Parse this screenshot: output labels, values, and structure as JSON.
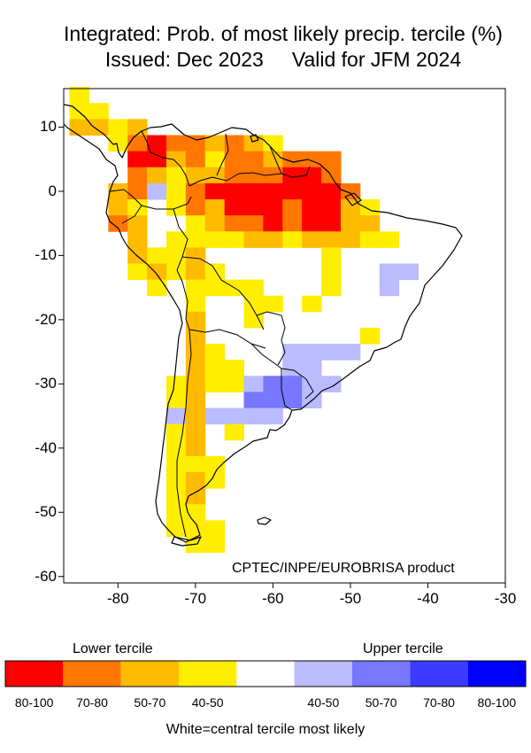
{
  "title": {
    "line1": "Integrated: Prob. of most likely precip. tercile (%)",
    "issued": "Issued: Dec 2023",
    "valid": "Valid for JFM 2024"
  },
  "map": {
    "lon_ticks": [
      "-80",
      "-70",
      "-60",
      "-50",
      "-40",
      "-30"
    ],
    "lat_ticks": [
      "10",
      "0",
      "-10",
      "-20",
      "-30",
      "-40",
      "-50",
      "-60"
    ],
    "lon_range": [
      -87,
      -30
    ],
    "lat_range": [
      -61,
      16
    ],
    "credit": "CPTEC/INPE/EUROBRISA product",
    "cells": [
      {
        "lon": -85,
        "lat": 15,
        "cls": "l4"
      },
      {
        "lon": -85,
        "lat": 12.5,
        "cls": "l4"
      },
      {
        "lon": -82.5,
        "lat": 12.5,
        "cls": "l4"
      },
      {
        "lon": -85,
        "lat": 10,
        "cls": "l3"
      },
      {
        "lon": -82.5,
        "lat": 10,
        "cls": "l3"
      },
      {
        "lon": -80,
        "lat": 10,
        "cls": "l4"
      },
      {
        "lon": -77.5,
        "lat": 10,
        "cls": "l3"
      },
      {
        "lon": -80,
        "lat": 7.5,
        "cls": "l4"
      },
      {
        "lon": -77.5,
        "lat": 7.5,
        "cls": "l2"
      },
      {
        "lon": -75,
        "lat": 7.5,
        "cls": "l1"
      },
      {
        "lon": -72.5,
        "lat": 7.5,
        "cls": "l2"
      },
      {
        "lon": -70,
        "lat": 7.5,
        "cls": "l2"
      },
      {
        "lon": -67.5,
        "lat": 7.5,
        "cls": "l3"
      },
      {
        "lon": -65,
        "lat": 7.5,
        "cls": "l2"
      },
      {
        "lon": -62.5,
        "lat": 7.5,
        "cls": "l3"
      },
      {
        "lon": -60,
        "lat": 7.5,
        "cls": "l4"
      },
      {
        "lon": -77.5,
        "lat": 5,
        "cls": "l1"
      },
      {
        "lon": -75,
        "lat": 5,
        "cls": "l1"
      },
      {
        "lon": -72.5,
        "lat": 5,
        "cls": "l3"
      },
      {
        "lon": -70,
        "lat": 5,
        "cls": "l2"
      },
      {
        "lon": -67.5,
        "lat": 5,
        "cls": "l4"
      },
      {
        "lon": -65,
        "lat": 5,
        "cls": "l2"
      },
      {
        "lon": -62.5,
        "lat": 5,
        "cls": "l2"
      },
      {
        "lon": -60,
        "lat": 5,
        "cls": "l3"
      },
      {
        "lon": -57.5,
        "lat": 5,
        "cls": "l2"
      },
      {
        "lon": -55,
        "lat": 5,
        "cls": "l2"
      },
      {
        "lon": -52.5,
        "lat": 5,
        "cls": "l2"
      },
      {
        "lon": -77.5,
        "lat": 2.5,
        "cls": "l2"
      },
      {
        "lon": -75,
        "lat": 2.5,
        "cls": "l3"
      },
      {
        "lon": -72.5,
        "lat": 2.5,
        "cls": "l4"
      },
      {
        "lon": -70,
        "lat": 2.5,
        "cls": "l3"
      },
      {
        "lon": -67.5,
        "lat": 2.5,
        "cls": "l3"
      },
      {
        "lon": -65,
        "lat": 2.5,
        "cls": "l2"
      },
      {
        "lon": -62.5,
        "lat": 2.5,
        "cls": "l2"
      },
      {
        "lon": -60,
        "lat": 2.5,
        "cls": "l2"
      },
      {
        "lon": -57.5,
        "lat": 2.5,
        "cls": "l1"
      },
      {
        "lon": -55,
        "lat": 2.5,
        "cls": "l1"
      },
      {
        "lon": -52.5,
        "lat": 2.5,
        "cls": "l2"
      },
      {
        "lon": -80,
        "lat": 0,
        "cls": "l3"
      },
      {
        "lon": -77.5,
        "lat": 0,
        "cls": "l2"
      },
      {
        "lon": -75,
        "lat": 0,
        "cls": "u1"
      },
      {
        "lon": -72.5,
        "lat": 0,
        "cls": "l4"
      },
      {
        "lon": -70,
        "lat": 0,
        "cls": "l2"
      },
      {
        "lon": -67.5,
        "lat": 0,
        "cls": "l1"
      },
      {
        "lon": -65,
        "lat": 0,
        "cls": "l1"
      },
      {
        "lon": -62.5,
        "lat": 0,
        "cls": "l1"
      },
      {
        "lon": -60,
        "lat": 0,
        "cls": "l1"
      },
      {
        "lon": -57.5,
        "lat": 0,
        "cls": "l1"
      },
      {
        "lon": -55,
        "lat": 0,
        "cls": "l1"
      },
      {
        "lon": -52.5,
        "lat": 0,
        "cls": "l1"
      },
      {
        "lon": -50,
        "lat": 0,
        "cls": "l2"
      },
      {
        "lon": -80,
        "lat": -2.5,
        "cls": "l3"
      },
      {
        "lon": -77.5,
        "lat": -2.5,
        "cls": "l4"
      },
      {
        "lon": -72.5,
        "lat": -2.5,
        "cls": "l4"
      },
      {
        "lon": -70,
        "lat": -2.5,
        "cls": "l2"
      },
      {
        "lon": -67.5,
        "lat": -2.5,
        "cls": "l3"
      },
      {
        "lon": -65,
        "lat": -2.5,
        "cls": "l1"
      },
      {
        "lon": -62.5,
        "lat": -2.5,
        "cls": "l1"
      },
      {
        "lon": -60,
        "lat": -2.5,
        "cls": "l1"
      },
      {
        "lon": -57.5,
        "lat": -2.5,
        "cls": "l2"
      },
      {
        "lon": -55,
        "lat": -2.5,
        "cls": "l1"
      },
      {
        "lon": -52.5,
        "lat": -2.5,
        "cls": "l1"
      },
      {
        "lon": -50,
        "lat": -2.5,
        "cls": "l3"
      },
      {
        "lon": -47.5,
        "lat": -2.5,
        "cls": "l4"
      },
      {
        "lon": -80,
        "lat": -5,
        "cls": "l2"
      },
      {
        "lon": -77.5,
        "lat": -5,
        "cls": "l3"
      },
      {
        "lon": -70,
        "lat": -5,
        "cls": "l4"
      },
      {
        "lon": -67.5,
        "lat": -5,
        "cls": "l3"
      },
      {
        "lon": -65,
        "lat": -5,
        "cls": "l2"
      },
      {
        "lon": -62.5,
        "lat": -5,
        "cls": "l2"
      },
      {
        "lon": -60,
        "lat": -5,
        "cls": "l1"
      },
      {
        "lon": -57.5,
        "lat": -5,
        "cls": "l2"
      },
      {
        "lon": -55,
        "lat": -5,
        "cls": "l1"
      },
      {
        "lon": -52.5,
        "lat": -5,
        "cls": "l1"
      },
      {
        "lon": -50,
        "lat": -5,
        "cls": "l3"
      },
      {
        "lon": -47.5,
        "lat": -5,
        "cls": "l3"
      },
      {
        "lon": -77.5,
        "lat": -7.5,
        "cls": "l3"
      },
      {
        "lon": -72.5,
        "lat": -7.5,
        "cls": "l4"
      },
      {
        "lon": -70,
        "lat": -7.5,
        "cls": "l4"
      },
      {
        "lon": -67.5,
        "lat": -7.5,
        "cls": "l4"
      },
      {
        "lon": -65,
        "lat": -7.5,
        "cls": "l4"
      },
      {
        "lon": -62.5,
        "lat": -7.5,
        "cls": "l3"
      },
      {
        "lon": -60,
        "lat": -7.5,
        "cls": "l3"
      },
      {
        "lon": -57.5,
        "lat": -7.5,
        "cls": "l4"
      },
      {
        "lon": -55,
        "lat": -7.5,
        "cls": "l3"
      },
      {
        "lon": -52.5,
        "lat": -7.5,
        "cls": "l3"
      },
      {
        "lon": -50,
        "lat": -7.5,
        "cls": "l3"
      },
      {
        "lon": -47.5,
        "lat": -7.5,
        "cls": "l4"
      },
      {
        "lon": -45,
        "lat": -7.5,
        "cls": "l4"
      },
      {
        "lon": -77.5,
        "lat": -10,
        "cls": "l3"
      },
      {
        "lon": -75,
        "lat": -10,
        "cls": "l4"
      },
      {
        "lon": -72.5,
        "lat": -10,
        "cls": "l4"
      },
      {
        "lon": -70,
        "lat": -10,
        "cls": "l3"
      },
      {
        "lon": -52.5,
        "lat": -10,
        "cls": "l4"
      },
      {
        "lon": -77.5,
        "lat": -12.5,
        "cls": "l4"
      },
      {
        "lon": -75,
        "lat": -12.5,
        "cls": "l3"
      },
      {
        "lon": -72.5,
        "lat": -12.5,
        "cls": "l4"
      },
      {
        "lon": -70,
        "lat": -12.5,
        "cls": "l3"
      },
      {
        "lon": -67.5,
        "lat": -12.5,
        "cls": "l4"
      },
      {
        "lon": -52.5,
        "lat": -12.5,
        "cls": "l4"
      },
      {
        "lon": -45,
        "lat": -12.5,
        "cls": "u1"
      },
      {
        "lon": -42.5,
        "lat": -12.5,
        "cls": "u1"
      },
      {
        "lon": -75,
        "lat": -15,
        "cls": "l4"
      },
      {
        "lon": -70,
        "lat": -15,
        "cls": "l4"
      },
      {
        "lon": -67.5,
        "lat": -15,
        "cls": "l4"
      },
      {
        "lon": -65,
        "lat": -15,
        "cls": "l4"
      },
      {
        "lon": -62.5,
        "lat": -15,
        "cls": "l4"
      },
      {
        "lon": -52.5,
        "lat": -15,
        "cls": "l4"
      },
      {
        "lon": -45,
        "lat": -15,
        "cls": "u1"
      },
      {
        "lon": -70,
        "lat": -17.5,
        "cls": "l4"
      },
      {
        "lon": -62.5,
        "lat": -17.5,
        "cls": "l4"
      },
      {
        "lon": -60,
        "lat": -17.5,
        "cls": "l4"
      },
      {
        "lon": -55,
        "lat": -17.5,
        "cls": "l4"
      },
      {
        "lon": -70,
        "lat": -20,
        "cls": "l3"
      },
      {
        "lon": -62.5,
        "lat": -20,
        "cls": "l4"
      },
      {
        "lon": -70,
        "lat": -22.5,
        "cls": "l3"
      },
      {
        "lon": -47.5,
        "lat": -22.5,
        "cls": "l4"
      },
      {
        "lon": -70,
        "lat": -25,
        "cls": "l3"
      },
      {
        "lon": -67.5,
        "lat": -25,
        "cls": "l4"
      },
      {
        "lon": -57.5,
        "lat": -25,
        "cls": "u1"
      },
      {
        "lon": -55,
        "lat": -25,
        "cls": "u1"
      },
      {
        "lon": -52.5,
        "lat": -25,
        "cls": "u1"
      },
      {
        "lon": -50,
        "lat": -25,
        "cls": "u1"
      },
      {
        "lon": -70,
        "lat": -27.5,
        "cls": "l3"
      },
      {
        "lon": -67.5,
        "lat": -27.5,
        "cls": "l4"
      },
      {
        "lon": -65,
        "lat": -27.5,
        "cls": "l4"
      },
      {
        "lon": -57.5,
        "lat": -27.5,
        "cls": "u1"
      },
      {
        "lon": -55,
        "lat": -27.5,
        "cls": "u1"
      },
      {
        "lon": -72.5,
        "lat": -30,
        "cls": "l4"
      },
      {
        "lon": -70,
        "lat": -30,
        "cls": "l3"
      },
      {
        "lon": -67.5,
        "lat": -30,
        "cls": "l4"
      },
      {
        "lon": -65,
        "lat": -30,
        "cls": "l4"
      },
      {
        "lon": -62.5,
        "lat": -30,
        "cls": "u1"
      },
      {
        "lon": -60,
        "lat": -30,
        "cls": "u2"
      },
      {
        "lon": -57.5,
        "lat": -30,
        "cls": "u2"
      },
      {
        "lon": -55,
        "lat": -30,
        "cls": "u1"
      },
      {
        "lon": -52.5,
        "lat": -30,
        "cls": "u1"
      },
      {
        "lon": -72.5,
        "lat": -32.5,
        "cls": "l4"
      },
      {
        "lon": -70,
        "lat": -32.5,
        "cls": "l3"
      },
      {
        "lon": -62.5,
        "lat": -32.5,
        "cls": "u2"
      },
      {
        "lon": -60,
        "lat": -32.5,
        "cls": "u2"
      },
      {
        "lon": -57.5,
        "lat": -32.5,
        "cls": "u2"
      },
      {
        "lon": -55,
        "lat": -32.5,
        "cls": "u1"
      },
      {
        "lon": -72.5,
        "lat": -35,
        "cls": "u1"
      },
      {
        "lon": -70,
        "lat": -35,
        "cls": "l3"
      },
      {
        "lon": -67.5,
        "lat": -35,
        "cls": "u1"
      },
      {
        "lon": -65,
        "lat": -35,
        "cls": "u1"
      },
      {
        "lon": -62.5,
        "lat": -35,
        "cls": "u1"
      },
      {
        "lon": -60,
        "lat": -35,
        "cls": "u1"
      },
      {
        "lon": -72.5,
        "lat": -37.5,
        "cls": "l4"
      },
      {
        "lon": -70,
        "lat": -37.5,
        "cls": "l3"
      },
      {
        "lon": -65,
        "lat": -37.5,
        "cls": "l4"
      },
      {
        "lon": -72.5,
        "lat": -40,
        "cls": "l4"
      },
      {
        "lon": -70,
        "lat": -40,
        "cls": "l3"
      },
      {
        "lon": -72.5,
        "lat": -42.5,
        "cls": "l4"
      },
      {
        "lon": -70,
        "lat": -42.5,
        "cls": "l4"
      },
      {
        "lon": -67.5,
        "lat": -42.5,
        "cls": "l4"
      },
      {
        "lon": -72.5,
        "lat": -45,
        "cls": "l4"
      },
      {
        "lon": -70,
        "lat": -45,
        "cls": "l3"
      },
      {
        "lon": -67.5,
        "lat": -45,
        "cls": "l4"
      },
      {
        "lon": -72.5,
        "lat": -47.5,
        "cls": "l4"
      },
      {
        "lon": -70,
        "lat": -47.5,
        "cls": "l3"
      },
      {
        "lon": -72.5,
        "lat": -50,
        "cls": "l4"
      },
      {
        "lon": -70,
        "lat": -50,
        "cls": "l4"
      },
      {
        "lon": -72.5,
        "lat": -52.5,
        "cls": "l4"
      },
      {
        "lon": -70,
        "lat": -52.5,
        "cls": "l4"
      },
      {
        "lon": -67.5,
        "lat": -52.5,
        "cls": "l4"
      },
      {
        "lon": -70,
        "lat": -55,
        "cls": "l4"
      },
      {
        "lon": -67.5,
        "lat": -55,
        "cls": "l4"
      }
    ]
  },
  "legend": {
    "lower_label": "Lower tercile",
    "upper_label": "Upper tercile",
    "bins": [
      {
        "label": "80-100",
        "color": "#ff0000"
      },
      {
        "label": "70-80",
        "color": "#ff7700"
      },
      {
        "label": "50-70",
        "color": "#ffbb00"
      },
      {
        "label": "40-50",
        "color": "#ffee00"
      },
      {
        "label": "",
        "color": "#ffffff"
      },
      {
        "label": "40-50",
        "color": "#bbbbff"
      },
      {
        "label": "50-70",
        "color": "#7777ff"
      },
      {
        "label": "70-80",
        "color": "#3b3bff"
      },
      {
        "label": "80-100",
        "color": "#0000ff"
      }
    ],
    "footnote": "White=central tercile most likely"
  },
  "colors": {
    "l1": "#ff0000",
    "l2": "#ff7700",
    "l3": "#ffbb00",
    "l4": "#ffee00",
    "u1": "#bbbbff",
    "u2": "#7777ff",
    "u3": "#3b3bff",
    "u4": "#0000ff"
  }
}
